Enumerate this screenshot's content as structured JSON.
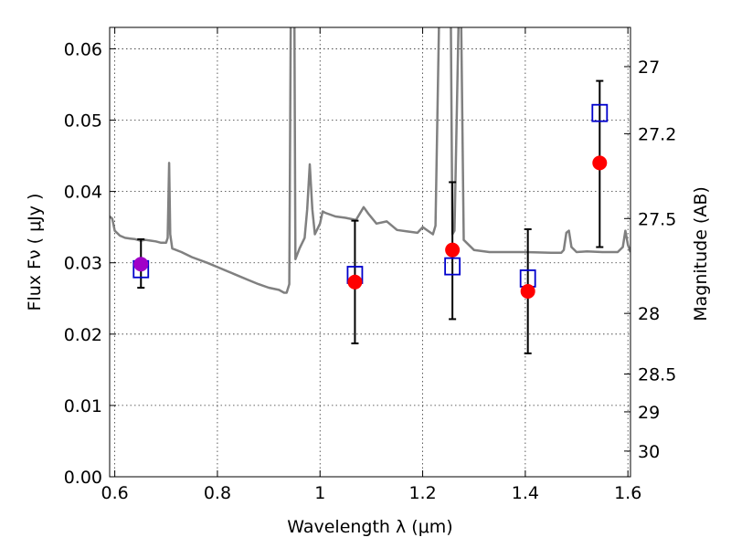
{
  "chart_data": {
    "type": "scatter",
    "title": "",
    "xlabel": "Wavelength  λ (μm)",
    "ylabel": "Flux  Fν  ( μJy )",
    "ylabel_right": "Magnitude (AB)",
    "xlim": [
      0.59,
      1.605
    ],
    "ylim": [
      0.0,
      0.063
    ],
    "grid": true,
    "x_ticks": [
      0.6,
      0.8,
      1.0,
      1.2,
      1.4,
      1.6
    ],
    "x_tick_labels": [
      "0.6",
      "0.8",
      "1",
      "1.2",
      "1.4",
      "1.6"
    ],
    "y_ticks": [
      0.0,
      0.01,
      0.02,
      0.03,
      0.04,
      0.05,
      0.06
    ],
    "y_tick_labels": [
      "0.00",
      "0.01",
      "0.02",
      "0.03",
      "0.04",
      "0.05",
      "0.06"
    ],
    "mag_ticks": [
      {
        "flux": 0.0575,
        "label": "27"
      },
      {
        "flux": 0.0481,
        "label": "27.2"
      },
      {
        "flux": 0.0362,
        "label": "27.5"
      },
      {
        "flux": 0.0229,
        "label": "28"
      },
      {
        "flux": 0.0144,
        "label": "28.5"
      },
      {
        "flux": 0.0091,
        "label": "29"
      },
      {
        "flux": 0.0036,
        "label": "30"
      }
    ],
    "colors": {
      "model": "#808080",
      "observed": "#ff0000",
      "observed_optical": "#a000c8",
      "model_box": "#0000cc",
      "errorbar": "#000000"
    },
    "series": [
      {
        "type": "line",
        "points": [
          [
            0.59,
            0.0365
          ],
          [
            0.595,
            0.0362
          ],
          [
            0.6,
            0.0345
          ],
          [
            0.61,
            0.0338
          ],
          [
            0.62,
            0.0335
          ],
          [
            0.63,
            0.0334
          ],
          [
            0.64,
            0.0333
          ],
          [
            0.65,
            0.0331
          ],
          [
            0.66,
            0.0332
          ],
          [
            0.67,
            0.0331
          ],
          [
            0.68,
            0.033
          ],
          [
            0.69,
            0.0328
          ],
          [
            0.7,
            0.0328
          ],
          [
            0.703,
            0.0335
          ],
          [
            0.706,
            0.044
          ],
          [
            0.708,
            0.034
          ],
          [
            0.712,
            0.032
          ],
          [
            0.73,
            0.0315
          ],
          [
            0.75,
            0.0308
          ],
          [
            0.78,
            0.03
          ],
          [
            0.8,
            0.0294
          ],
          [
            0.82,
            0.0288
          ],
          [
            0.84,
            0.0282
          ],
          [
            0.86,
            0.0276
          ],
          [
            0.88,
            0.027
          ],
          [
            0.9,
            0.0265
          ],
          [
            0.92,
            0.0262
          ],
          [
            0.93,
            0.0258
          ],
          [
            0.935,
            0.0258
          ],
          [
            0.94,
            0.027
          ],
          [
            0.943,
            0.064
          ],
          [
            0.95,
            0.064
          ],
          [
            0.952,
            0.0305
          ],
          [
            0.96,
            0.032
          ],
          [
            0.97,
            0.0335
          ],
          [
            0.975,
            0.0375
          ],
          [
            0.98,
            0.0438
          ],
          [
            0.985,
            0.0375
          ],
          [
            0.99,
            0.034
          ],
          [
            1.0,
            0.0355
          ],
          [
            1.005,
            0.0372
          ],
          [
            1.01,
            0.037
          ],
          [
            1.03,
            0.0365
          ],
          [
            1.05,
            0.0363
          ],
          [
            1.07,
            0.036
          ],
          [
            1.085,
            0.0378
          ],
          [
            1.095,
            0.0368
          ],
          [
            1.11,
            0.0355
          ],
          [
            1.13,
            0.0358
          ],
          [
            1.15,
            0.0346
          ],
          [
            1.17,
            0.0344
          ],
          [
            1.19,
            0.0342
          ],
          [
            1.2,
            0.035
          ],
          [
            1.21,
            0.0345
          ],
          [
            1.22,
            0.034
          ],
          [
            1.225,
            0.0352
          ],
          [
            1.232,
            0.064
          ],
          [
            1.255,
            0.064
          ],
          [
            1.258,
            0.034
          ],
          [
            1.262,
            0.0345
          ],
          [
            1.27,
            0.064
          ],
          [
            1.275,
            0.064
          ],
          [
            1.28,
            0.0332
          ],
          [
            1.3,
            0.0318
          ],
          [
            1.33,
            0.0315
          ],
          [
            1.36,
            0.0315
          ],
          [
            1.4,
            0.0315
          ],
          [
            1.45,
            0.0314
          ],
          [
            1.47,
            0.0314
          ],
          [
            1.475,
            0.0318
          ],
          [
            1.48,
            0.0342
          ],
          [
            1.485,
            0.0345
          ],
          [
            1.49,
            0.0322
          ],
          [
            1.5,
            0.0315
          ],
          [
            1.52,
            0.0316
          ],
          [
            1.55,
            0.0315
          ],
          [
            1.58,
            0.0315
          ],
          [
            1.59,
            0.0322
          ],
          [
            1.595,
            0.0345
          ],
          [
            1.6,
            0.0325
          ],
          [
            1.605,
            0.0315
          ]
        ]
      },
      {
        "type": "errorbar",
        "points": [
          {
            "x": 0.651,
            "y": 0.0298,
            "ylow": 0.0265,
            "yhigh": 0.0333,
            "color": "observed_optical"
          },
          {
            "x": 1.068,
            "y": 0.0273,
            "ylow": 0.0187,
            "yhigh": 0.0359,
            "color": "observed"
          },
          {
            "x": 1.258,
            "y": 0.0318,
            "ylow": 0.0221,
            "yhigh": 0.0413,
            "color": "observed"
          },
          {
            "x": 1.405,
            "y": 0.026,
            "ylow": 0.0173,
            "yhigh": 0.0347,
            "color": "observed"
          },
          {
            "x": 1.545,
            "y": 0.044,
            "ylow": 0.0322,
            "yhigh": 0.0555,
            "color": "observed"
          }
        ]
      },
      {
        "type": "box",
        "points": [
          {
            "x": 0.651,
            "y": 0.0291
          },
          {
            "x": 1.068,
            "y": 0.0283
          },
          {
            "x": 1.258,
            "y": 0.0295
          },
          {
            "x": 1.405,
            "y": 0.0278
          },
          {
            "x": 1.545,
            "y": 0.051
          }
        ]
      }
    ]
  }
}
